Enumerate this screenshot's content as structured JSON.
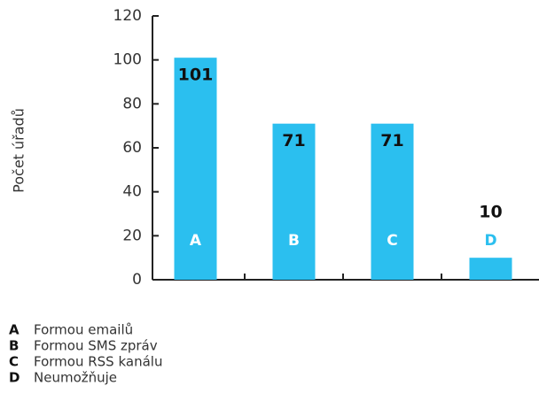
{
  "chart_data": {
    "type": "bar",
    "ylabel": "Počet úřadů",
    "categories": [
      "A",
      "B",
      "C",
      "D"
    ],
    "values": [
      101,
      71,
      71,
      10
    ],
    "color": "#2bbfef",
    "ylim": [
      0,
      120
    ],
    "yticks": [
      0,
      20,
      40,
      60,
      80,
      100,
      120
    ],
    "legend": [
      "Formou emailů",
      "Formou SMS zpráv",
      "Formou RSS kanálu",
      "Neumožňuje"
    ]
  }
}
